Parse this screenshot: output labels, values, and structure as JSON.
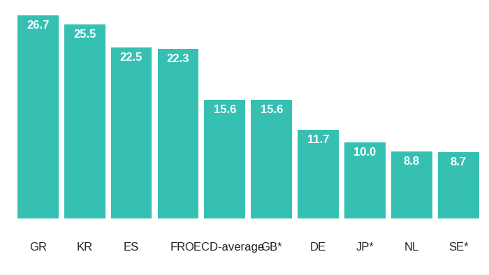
{
  "chart_data": {
    "type": "bar",
    "categories": [
      "GR",
      "KR",
      "ES",
      "FR",
      "OECD-average",
      "GB*",
      "DE",
      "JP*",
      "NL",
      "SE*"
    ],
    "values": [
      26.7,
      25.5,
      22.5,
      22.3,
      15.6,
      15.6,
      11.7,
      10.0,
      8.8,
      8.7
    ],
    "color": "#35c0b2",
    "ylim": [
      0,
      26.7
    ],
    "data_labels": true,
    "tick_labels": "x"
  }
}
